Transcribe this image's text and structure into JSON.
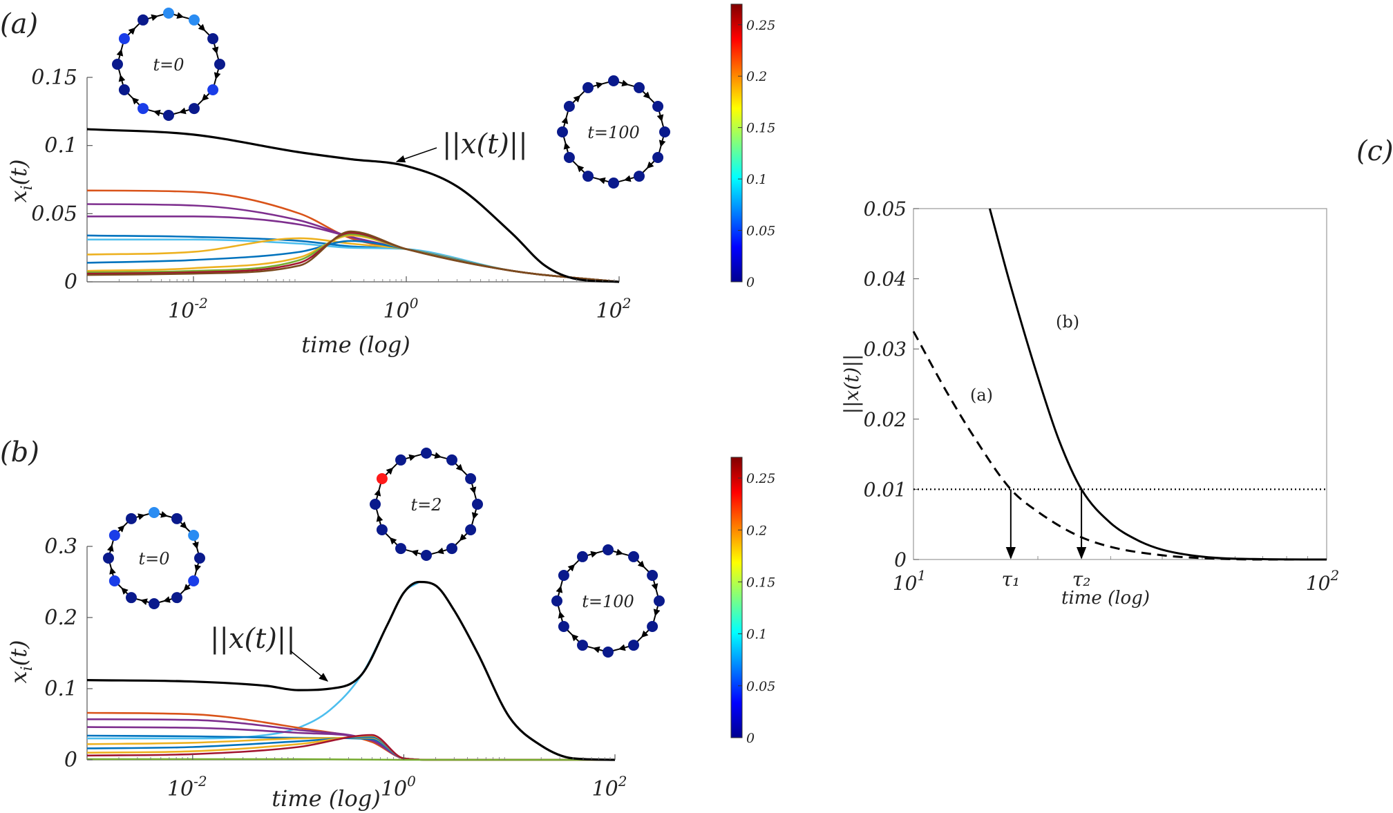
{
  "panels": {
    "a": {
      "tag": "(a)",
      "xlabel": "time (log)",
      "ylabel": "x_i(t)",
      "norm_label": "||x(t)||"
    },
    "b": {
      "tag": "(b)",
      "xlabel": "time (log)",
      "ylabel": "x_i(t)",
      "norm_label": "||x(t)||"
    },
    "c": {
      "tag": "(c)",
      "xlabel": "time (log)",
      "ylabel": "||x(t)||",
      "curve_a_label": "(a)",
      "curve_b_label": "(b)",
      "tau1": "τ₁",
      "tau2": "τ₂"
    }
  },
  "network_labels": {
    "a_t0": "t=0",
    "a_t100": "t=100",
    "b_t0": "t=0",
    "b_t2": "t=2",
    "b_t100": "t=100"
  },
  "colorbar": {
    "colormap": "jet",
    "range": [
      0,
      0.27
    ],
    "ticks": [
      "0",
      "0.05",
      "0.1",
      "0.15",
      "0.2",
      "0.25"
    ]
  },
  "chart_data": [
    {
      "type": "line",
      "panel": "a",
      "xscale": "log",
      "xlim": [
        0.001,
        100
      ],
      "ylim": [
        0,
        0.15
      ],
      "xticks": [
        "10^-2",
        "10^0",
        "10^2"
      ],
      "yticks": [
        "0",
        "0.05",
        "0.1",
        "0.15"
      ],
      "xlabel": "time (log)",
      "ylabel": "x_i(t)",
      "norm": {
        "name": "||x(t)||",
        "x": [
          0.001,
          0.01,
          0.1,
          0.3,
          1,
          3,
          10,
          20,
          40,
          100
        ],
        "y": [
          0.112,
          0.108,
          0.095,
          0.09,
          0.085,
          0.07,
          0.035,
          0.012,
          0.002,
          0
        ]
      },
      "series": [
        {
          "color": "#d95319",
          "x": [
            0.001,
            0.01,
            0.1,
            0.3,
            1,
            10,
            100
          ],
          "y": [
            0.067,
            0.066,
            0.05,
            0.032,
            0.024,
            0.008,
            0
          ]
        },
        {
          "color": "#7e2f8e",
          "x": [
            0.001,
            0.01,
            0.1,
            0.3,
            1,
            10,
            100
          ],
          "y": [
            0.057,
            0.056,
            0.045,
            0.033,
            0.024,
            0.008,
            0
          ]
        },
        {
          "color": "#7e2f8e",
          "x": [
            0.001,
            0.01,
            0.1,
            0.3,
            1,
            10,
            100
          ],
          "y": [
            0.048,
            0.048,
            0.042,
            0.033,
            0.024,
            0.008,
            0
          ]
        },
        {
          "color": "#0072bd",
          "x": [
            0.001,
            0.01,
            0.1,
            0.3,
            1,
            10,
            100
          ],
          "y": [
            0.034,
            0.033,
            0.03,
            0.026,
            0.024,
            0.008,
            0
          ]
        },
        {
          "color": "#4dbeee",
          "x": [
            0.001,
            0.01,
            0.1,
            0.3,
            1,
            10,
            100
          ],
          "y": [
            0.031,
            0.031,
            0.028,
            0.025,
            0.024,
            0.008,
            0
          ]
        },
        {
          "color": "#edb120",
          "x": [
            0.001,
            0.01,
            0.1,
            0.3,
            1,
            10,
            100
          ],
          "y": [
            0.02,
            0.022,
            0.032,
            0.028,
            0.024,
            0.008,
            0
          ]
        },
        {
          "color": "#0072bd",
          "x": [
            0.001,
            0.01,
            0.1,
            0.3,
            1,
            10,
            100
          ],
          "y": [
            0.014,
            0.016,
            0.022,
            0.03,
            0.024,
            0.008,
            0
          ]
        },
        {
          "color": "#edb120",
          "x": [
            0.001,
            0.01,
            0.1,
            0.3,
            1,
            10,
            100
          ],
          "y": [
            0.008,
            0.01,
            0.018,
            0.034,
            0.024,
            0.008,
            0
          ]
        },
        {
          "color": "#77ac30",
          "x": [
            0.001,
            0.01,
            0.1,
            0.3,
            1,
            10,
            100
          ],
          "y": [
            0.007,
            0.008,
            0.016,
            0.035,
            0.024,
            0.008,
            0
          ]
        },
        {
          "color": "#a2142f",
          "x": [
            0.001,
            0.01,
            0.1,
            0.3,
            1,
            10,
            100
          ],
          "y": [
            0.006,
            0.007,
            0.014,
            0.036,
            0.024,
            0.008,
            0
          ]
        },
        {
          "color": "#7b4a1e",
          "x": [
            0.001,
            0.01,
            0.1,
            0.3,
            1,
            10,
            100
          ],
          "y": [
            0.005,
            0.006,
            0.012,
            0.037,
            0.024,
            0.008,
            0
          ]
        }
      ]
    },
    {
      "type": "line",
      "panel": "b",
      "xscale": "log",
      "xlim": [
        0.001,
        100
      ],
      "ylim": [
        0,
        0.3
      ],
      "xticks": [
        "10^-2",
        "10^0",
        "10^2"
      ],
      "yticks": [
        "0",
        "0.1",
        "0.2",
        "0.3"
      ],
      "xlabel": "time (log)",
      "ylabel": "x_i(t)",
      "norm": {
        "name": "||x(t)||",
        "x": [
          0.001,
          0.01,
          0.05,
          0.1,
          0.2,
          0.4,
          0.7,
          1,
          1.4,
          2,
          3,
          5,
          10,
          20,
          40,
          100
        ],
        "y": [
          0.112,
          0.11,
          0.104,
          0.098,
          0.1,
          0.12,
          0.19,
          0.235,
          0.25,
          0.245,
          0.21,
          0.15,
          0.06,
          0.02,
          0.002,
          0
        ]
      },
      "series": [
        {
          "color": "#4dbeee",
          "x": [
            0.001,
            0.01,
            0.05,
            0.1,
            0.2,
            0.4,
            0.7,
            1,
            1.4
          ],
          "y": [
            0.03,
            0.03,
            0.035,
            0.045,
            0.07,
            0.12,
            0.19,
            0.235,
            0.25
          ]
        },
        {
          "color": "#d95319",
          "x": [
            0.001,
            0.01,
            0.1,
            0.5,
            1,
            2,
            100
          ],
          "y": [
            0.066,
            0.064,
            0.045,
            0.025,
            0.002,
            0,
            0
          ]
        },
        {
          "color": "#7e2f8e",
          "x": [
            0.001,
            0.01,
            0.1,
            0.5,
            1,
            2,
            100
          ],
          "y": [
            0.057,
            0.056,
            0.042,
            0.027,
            0.002,
            0,
            0
          ]
        },
        {
          "color": "#7e2f8e",
          "x": [
            0.001,
            0.01,
            0.1,
            0.5,
            1,
            2,
            100
          ],
          "y": [
            0.046,
            0.045,
            0.038,
            0.028,
            0.002,
            0,
            0
          ]
        },
        {
          "color": "#0072bd",
          "x": [
            0.001,
            0.01,
            0.1,
            0.5,
            1,
            2,
            100
          ],
          "y": [
            0.034,
            0.033,
            0.031,
            0.029,
            0.002,
            0,
            0
          ]
        },
        {
          "color": "#edb120",
          "x": [
            0.001,
            0.01,
            0.1,
            0.5,
            1,
            2,
            100
          ],
          "y": [
            0.022,
            0.024,
            0.03,
            0.031,
            0.002,
            0,
            0
          ]
        },
        {
          "color": "#0072bd",
          "x": [
            0.001,
            0.01,
            0.1,
            0.5,
            1,
            2,
            100
          ],
          "y": [
            0.016,
            0.018,
            0.026,
            0.032,
            0.002,
            0,
            0
          ]
        },
        {
          "color": "#edb120",
          "x": [
            0.001,
            0.01,
            0.1,
            0.5,
            1,
            2,
            100
          ],
          "y": [
            0.01,
            0.012,
            0.022,
            0.034,
            0.002,
            0,
            0
          ]
        },
        {
          "color": "#a2142f",
          "x": [
            0.001,
            0.01,
            0.1,
            0.5,
            1,
            2,
            100
          ],
          "y": [
            0.006,
            0.008,
            0.018,
            0.035,
            0.002,
            0,
            0
          ]
        },
        {
          "color": "#77ac30",
          "x": [
            0.001,
            0.01,
            0.1,
            1,
            100
          ],
          "y": [
            0.001,
            0.001,
            0.001,
            0,
            0
          ]
        }
      ]
    },
    {
      "type": "line",
      "panel": "c",
      "xscale": "log",
      "xlim": [
        10,
        100
      ],
      "ylim": [
        0,
        0.05
      ],
      "xticks": [
        "10^1",
        "10^2"
      ],
      "yticks": [
        "0",
        "0.01",
        "0.02",
        "0.03",
        "0.04",
        "0.05"
      ],
      "xlabel": "time (log)",
      "ylabel": "||x(t)||",
      "threshold": 0.01,
      "tau1": 17.2,
      "tau2": 25.5,
      "series": [
        {
          "name": "(a)",
          "style": "dashed",
          "x": [
            10,
            12,
            14,
            17.2,
            20,
            25,
            30,
            40,
            50,
            70,
            100
          ],
          "y": [
            0.0325,
            0.024,
            0.0175,
            0.01,
            0.0068,
            0.0034,
            0.0018,
            0.0006,
            0.0002,
            0,
            0
          ]
        },
        {
          "name": "(b)",
          "style": "solid",
          "x": [
            15.3,
            17,
            20,
            22.5,
            25.5,
            30,
            35,
            40,
            50,
            70,
            100
          ],
          "y": [
            0.05,
            0.04,
            0.026,
            0.017,
            0.01,
            0.0052,
            0.0027,
            0.0014,
            0.0004,
            5e-05,
            0
          ]
        }
      ]
    }
  ]
}
